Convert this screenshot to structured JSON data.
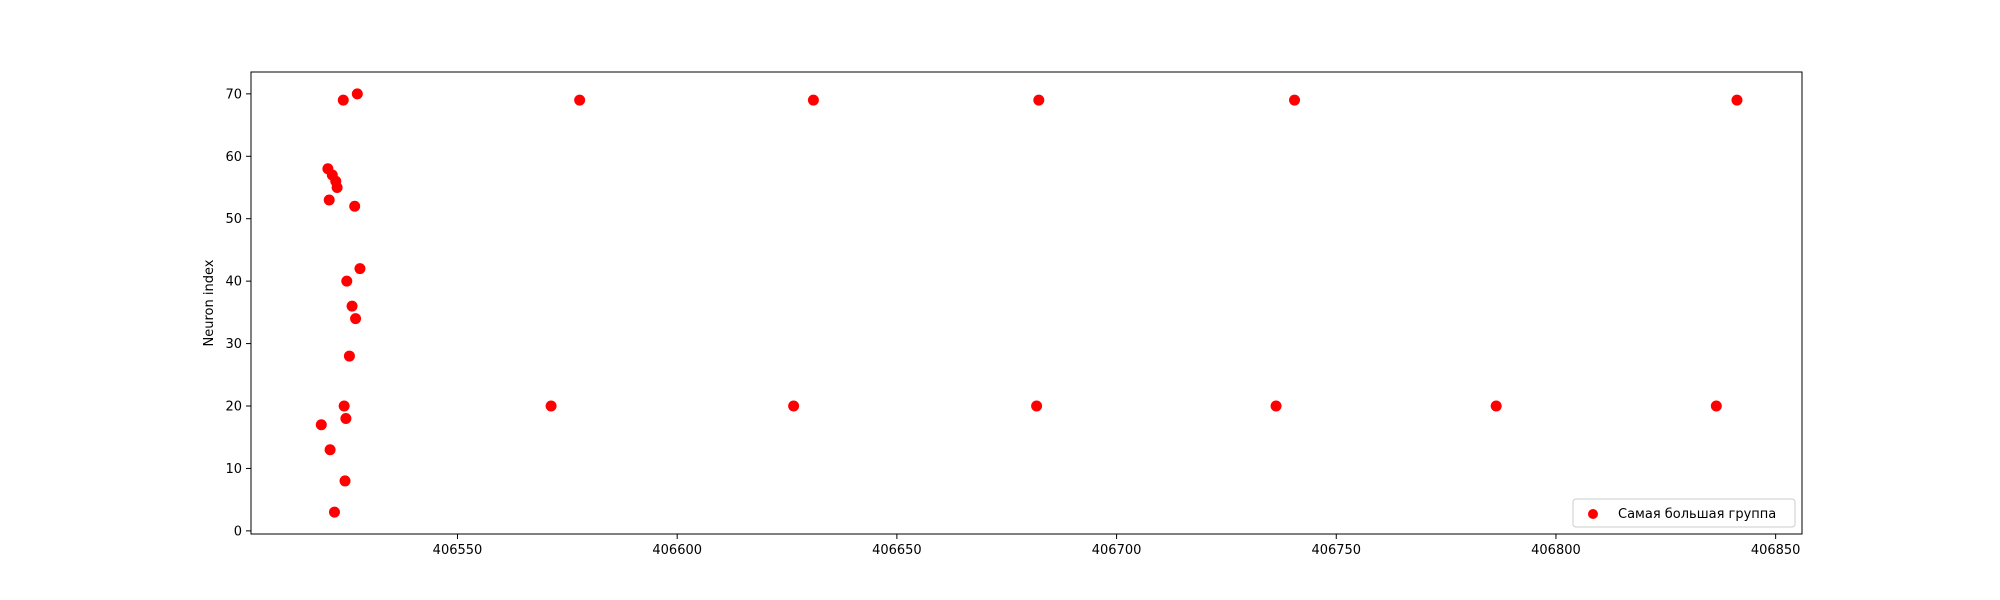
{
  "chart_data": {
    "type": "scatter",
    "title": "",
    "xlabel": "",
    "ylabel": "Neuron index",
    "xlim": [
      406503,
      406856
    ],
    "ylim": [
      -0.5,
      73.5
    ],
    "xticks": [
      406550,
      406600,
      406650,
      406700,
      406750,
      406800,
      406850
    ],
    "yticks": [
      0,
      10,
      20,
      30,
      40,
      50,
      60,
      70
    ],
    "grid": false,
    "legend": "lower-right",
    "series": [
      {
        "name": "Самая большая группа",
        "color": "#ff0000",
        "points": [
          [
            406519.0,
            17
          ],
          [
            406520.5,
            58
          ],
          [
            406520.8,
            53
          ],
          [
            406521.0,
            13
          ],
          [
            406521.5,
            57
          ],
          [
            406522.0,
            3
          ],
          [
            406522.3,
            56
          ],
          [
            406522.6,
            55
          ],
          [
            406524.0,
            69
          ],
          [
            406524.2,
            20
          ],
          [
            406524.4,
            8
          ],
          [
            406524.6,
            18
          ],
          [
            406524.8,
            40
          ],
          [
            406525.4,
            28
          ],
          [
            406526.0,
            36
          ],
          [
            406526.6,
            52
          ],
          [
            406526.8,
            34
          ],
          [
            406527.2,
            70
          ],
          [
            406527.8,
            42
          ],
          [
            406571.3,
            20
          ],
          [
            406577.8,
            69
          ],
          [
            406626.5,
            20
          ],
          [
            406631.0,
            69
          ],
          [
            406681.8,
            20
          ],
          [
            406682.3,
            69
          ],
          [
            406736.3,
            20
          ],
          [
            406740.5,
            69
          ],
          [
            406786.4,
            20
          ],
          [
            406836.5,
            20
          ],
          [
            406841.2,
            69
          ]
        ]
      }
    ]
  }
}
